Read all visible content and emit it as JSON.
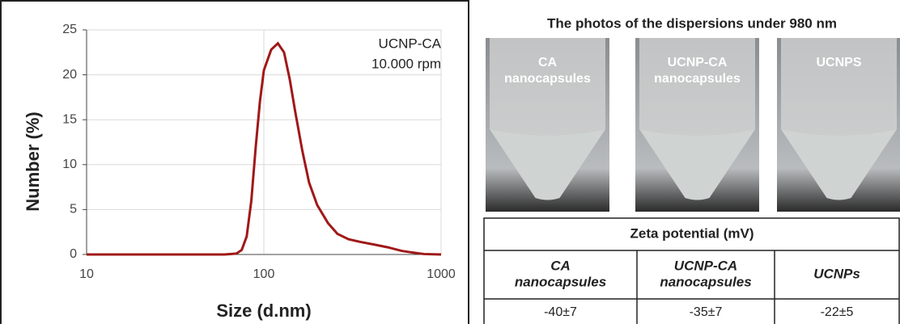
{
  "chart_data": {
    "type": "line",
    "xlabel": "Size (d.nm)",
    "ylabel": "Number (%)",
    "annotation": [
      "UCNP-CA",
      "10.000 rpm"
    ],
    "x": [
      10,
      60,
      70,
      75,
      80,
      85,
      90,
      95,
      100,
      110,
      120,
      130,
      140,
      150,
      165,
      180,
      200,
      230,
      260,
      300,
      350,
      420,
      500,
      600,
      700,
      800,
      1000
    ],
    "values": [
      0,
      0,
      0.1,
      0.5,
      2,
      6,
      12,
      17,
      20.5,
      22.8,
      23.5,
      22.5,
      19.5,
      16,
      11.5,
      8,
      5.5,
      3.5,
      2.3,
      1.7,
      1.4,
      1.1,
      0.8,
      0.4,
      0.2,
      0.05,
      0
    ],
    "color": "#a01818",
    "log_x": true,
    "xlim": [
      10,
      1000
    ],
    "xticks": [
      10,
      100,
      1000
    ],
    "ylim": [
      0,
      25
    ],
    "yticks": [
      0,
      5,
      10,
      15,
      20,
      25
    ],
    "grid": true
  },
  "photos": {
    "title": "The photos of the dispersions under 980 nm",
    "items": [
      {
        "label": [
          "CA",
          "nanocapsules"
        ]
      },
      {
        "label": [
          "UCNP-CA",
          "nanocapsules"
        ]
      },
      {
        "label": [
          "UCNPS"
        ]
      }
    ]
  },
  "table": {
    "header": "Zeta potential (mV)",
    "columns": [
      [
        "CA",
        "nanocapsules"
      ],
      [
        "UCNP-CA",
        "nanocapsules"
      ],
      [
        "UCNPs"
      ]
    ],
    "rows": [
      [
        "-40±7",
        "-35±7",
        "-22±5"
      ]
    ]
  }
}
